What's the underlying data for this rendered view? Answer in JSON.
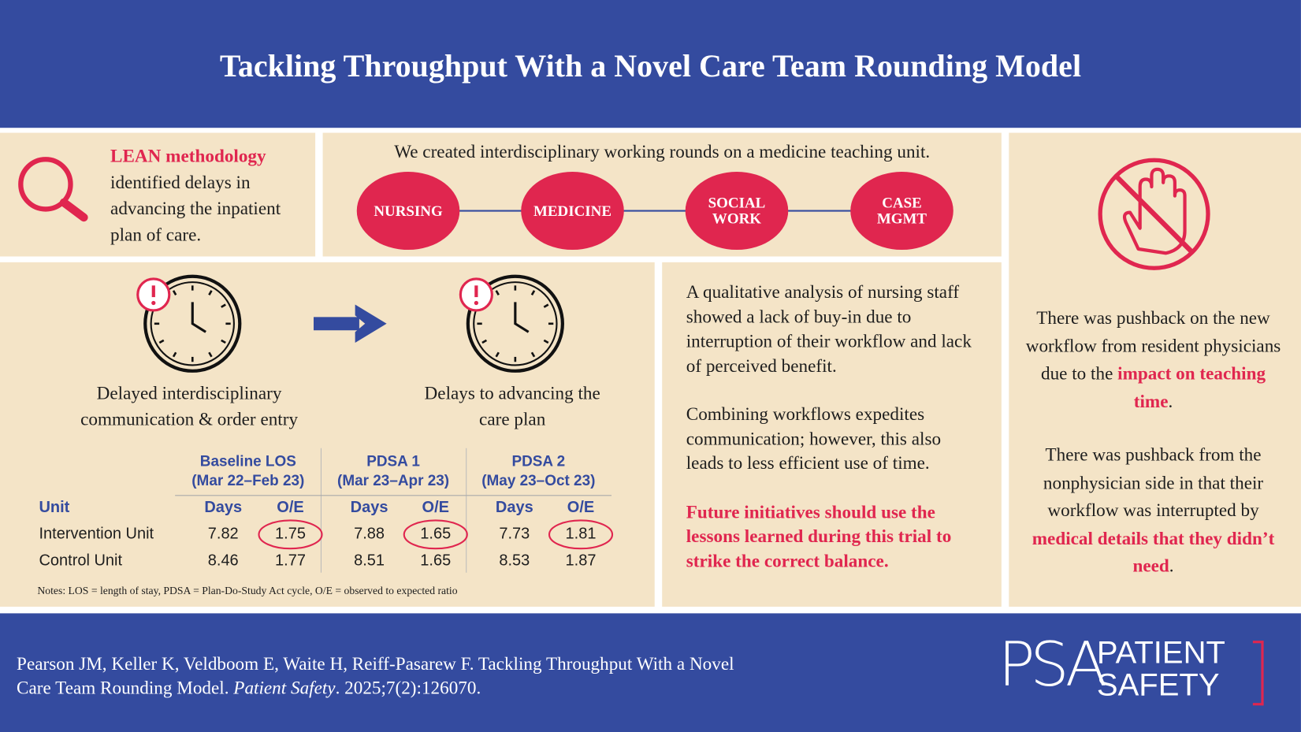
{
  "header": {
    "title": "Tackling Throughput With a Novel Care Team Rounding Model"
  },
  "lean": {
    "highlight": "LEAN methodology",
    "text": "identified delays in advancing the inpatient plan of care."
  },
  "rounds": {
    "title": "We created interdisciplinary working rounds on a medicine teaching unit.",
    "nodes": [
      "NURSING",
      "MEDICINE",
      "SOCIAL WORK",
      "CASE MGMT"
    ]
  },
  "flow": {
    "before": "Delayed interdisciplinary communication & order entry",
    "after": "Delays to advancing the care plan"
  },
  "table": {
    "groups": [
      {
        "title": "Baseline LOS",
        "period": "(Mar 22–Feb 23)"
      },
      {
        "title": "PDSA 1",
        "period": "(Mar 23–Apr 23)"
      },
      {
        "title": "PDSA 2",
        "period": "(May 23–Oct 23)"
      }
    ],
    "unit_header": "Unit",
    "subheaders": [
      "Days",
      "O/E",
      "Days",
      "O/E",
      "Days",
      "O/E"
    ],
    "rows": [
      {
        "unit": "Intervention Unit",
        "values": [
          7.82,
          1.75,
          7.88,
          1.65,
          7.73,
          1.81
        ]
      },
      {
        "unit": "Control Unit",
        "values": [
          8.46,
          1.77,
          8.51,
          1.65,
          8.53,
          1.87
        ]
      }
    ],
    "notes": "Notes: LOS = length of stay, PDSA = Plan-Do-Study Act cycle, O/E = observed to expected ratio"
  },
  "analysis": {
    "paragraphs": [
      "A qualitative analysis of nursing staff showed a lack of buy-in due to interruption of their workflow and lack of perceived benefit.",
      "Combining workflows expedites communication; however, this also leads to less efficient use of time."
    ],
    "conclusion": "Future initiatives should use the lessons learned during this trial to strike the correct balance."
  },
  "pushback": [
    {
      "before": "There was pushback on the new workflow from resident physicians due to the ",
      "highlight": "impact on teaching time",
      "after": "."
    },
    {
      "before": "There was pushback from the nonphysician side in that their workflow was interrupted by ",
      "highlight": "medical details that they didn’t need",
      "after": "."
    }
  ],
  "footer": {
    "citation": "Pearson JM, Keller K, Veldboom E, Waite H, Reiff-Pasarew F. Tackling Throughput With a Novel Care Team Rounding Model. ",
    "journal": "Patient Safety",
    "reference": ". 2025;7(2):126070.",
    "logo": {
      "mark": "PSA",
      "line1": "PATIENT",
      "line2": "SAFETY"
    }
  }
}
